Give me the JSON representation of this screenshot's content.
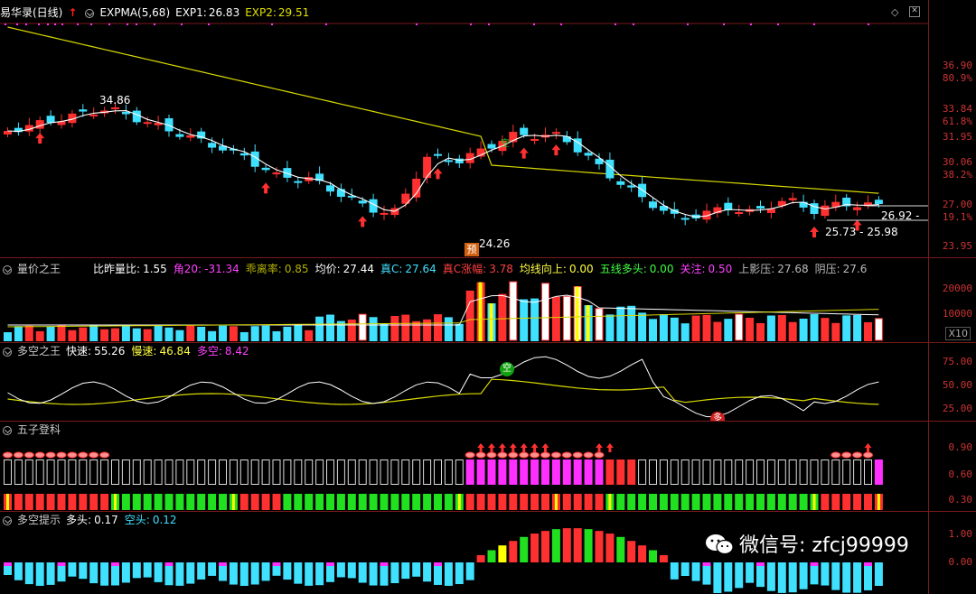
{
  "main": {
    "stock_name": "易华录(日线)",
    "arrow_glyph": "↑",
    "indicator": "EXPMA(5,68)",
    "exp1_label": "EXP1:",
    "exp1_value": "26.83",
    "exp2_label": "EXP2:",
    "exp2_value": "29.51",
    "axis_ticks": [
      {
        "price": "36.90",
        "pct": "80.9%"
      },
      {
        "price": "33.84",
        "pct": "61.8%"
      },
      {
        "price": "31.95",
        "pct": ""
      },
      {
        "price": "30.06",
        "pct": "38.2%"
      },
      {
        "price": "27.00",
        "pct": "19.1%"
      },
      {
        "price": "23.95",
        "pct": ""
      }
    ],
    "high_label": "34.86",
    "low_label": "24.26",
    "range_label_1": "26.92 - ",
    "range_label_2": "25.73 - 25.98",
    "signal_sell": "空",
    "signal_yu": "预"
  },
  "volume": {
    "title": "量价之王",
    "fields": [
      {
        "label": "比昨量比:",
        "value": "1.55",
        "color": "#ffffff"
      },
      {
        "label": "角20:",
        "value": "-31.34",
        "color": "#ff40ff"
      },
      {
        "label": "乖离率:",
        "value": "0.85",
        "color": "#b0b000"
      },
      {
        "label": "均价:",
        "value": "27.44",
        "color": "#ffffff"
      },
      {
        "label": "真C:",
        "value": "27.64",
        "color": "#40e0ff"
      },
      {
        "label": "真C涨幅:",
        "value": "3.78",
        "color": "#ff4040"
      },
      {
        "label": "均线向上:",
        "value": "0.00",
        "color": "#ffff40"
      },
      {
        "label": "五线多头:",
        "value": "0.00",
        "color": "#40ff40"
      },
      {
        "label": "关注:",
        "value": "0.50",
        "color": "#ff40ff"
      },
      {
        "label": "上影压:",
        "value": "27.68",
        "color": "#bbbbbb"
      },
      {
        "label": "阴压:",
        "value": "27.6",
        "color": "#bbbbbb"
      }
    ],
    "axis_ticks": [
      "20000",
      "10000"
    ],
    "unit": "X10"
  },
  "duokong": {
    "title": "多空之王",
    "fields": [
      {
        "label": "快速:",
        "value": "55.26",
        "color": "#ffffff"
      },
      {
        "label": "慢速:",
        "value": "46.84",
        "color": "#ffff40"
      },
      {
        "label": "多空:",
        "value": "8.42",
        "color": "#ff40ff"
      }
    ],
    "axis_ticks": [
      "75.00",
      "50.00",
      "25.00"
    ],
    "signal_kong": "空",
    "signal_duo": "多"
  },
  "wuzi": {
    "title": "五子登科",
    "axis_ticks": [
      "0.90",
      "0.60",
      "0.30"
    ]
  },
  "tishi": {
    "title": "多空提示",
    "fields": [
      {
        "label": "多头:",
        "value": "0.17",
        "color": "#ffffff"
      },
      {
        "label": "空头:",
        "value": "0.12",
        "color": "#40e0ff"
      }
    ],
    "axis_ticks": [
      "1.00",
      "0.00"
    ]
  },
  "watermark": {
    "text": "微信号: zfcj99999"
  },
  "colors": {
    "up": "#ff3030",
    "down": "#40e0ff",
    "exp_slow": "#d8d800",
    "exp_fast": "#ffffff",
    "grid": "#7a1a1a",
    "magenta": "#ff30ff",
    "green": "#20e020",
    "yellow": "#ffff00"
  }
}
